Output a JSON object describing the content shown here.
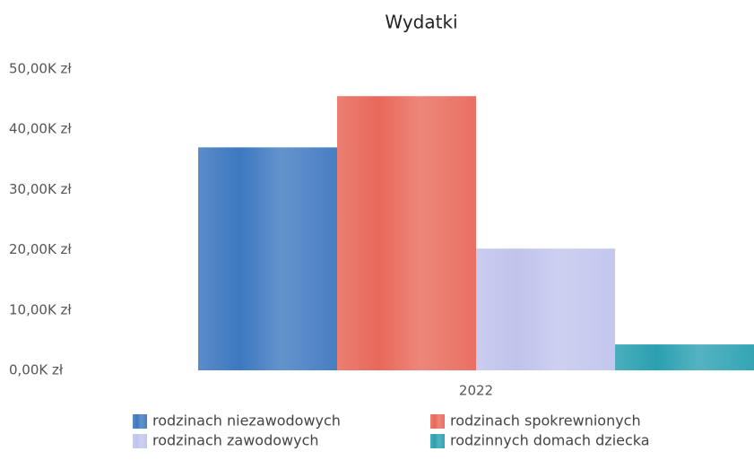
{
  "chart_data": {
    "type": "bar",
    "title": "Wydatki",
    "categories": [
      "2022"
    ],
    "series": [
      {
        "name": "rodzinach niezawodowych",
        "color": "#3d78c0",
        "values": [
          37000
        ]
      },
      {
        "name": "rodzinach spokrewnionych",
        "color": "#e8685a",
        "values": [
          45500
        ]
      },
      {
        "name": "rodzinach zawodowych",
        "color": "#c0c4ec",
        "values": [
          20200
        ]
      },
      {
        "name": "rodzinnych domach dziecka",
        "color": "#2aa0b0",
        "values": [
          4300
        ]
      }
    ],
    "ylim": [
      0,
      50000
    ],
    "yticks": [
      {
        "value": 0,
        "label": "0,00K zł"
      },
      {
        "value": 10000,
        "label": "10,00K zł"
      },
      {
        "value": 20000,
        "label": "20,00K zł"
      },
      {
        "value": 30000,
        "label": "30,00K zł"
      },
      {
        "value": 40000,
        "label": "40,00K zł"
      },
      {
        "value": 50000,
        "label": "50,00K zł"
      }
    ],
    "grid": false
  }
}
